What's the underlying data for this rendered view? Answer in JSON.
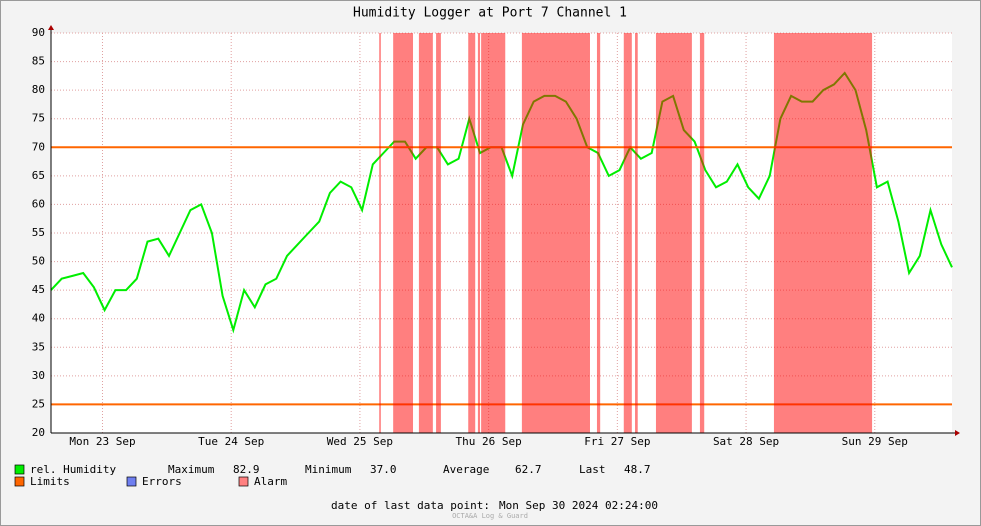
{
  "chart_data": {
    "type": "line",
    "title": "Humidity Logger at Port 7 Channel 1",
    "xlim": [
      0,
      168
    ],
    "xticks": [
      {
        "value": 9.6,
        "label": "Mon 23 Sep"
      },
      {
        "value": 33.6,
        "label": "Tue 24 Sep"
      },
      {
        "value": 57.6,
        "label": "Wed 25 Sep"
      },
      {
        "value": 81.6,
        "label": "Thu 26 Sep"
      },
      {
        "value": 105.6,
        "label": "Fri 27 Sep"
      },
      {
        "value": 129.6,
        "label": "Sat 28 Sep"
      },
      {
        "value": 153.6,
        "label": "Sun 29 Sep"
      }
    ],
    "ylim": [
      20,
      90
    ],
    "yticks": [
      20,
      25,
      30,
      35,
      40,
      45,
      50,
      55,
      60,
      65,
      70,
      75,
      80,
      85,
      90
    ],
    "grid": true,
    "series": [
      {
        "name": "rel. Humidity",
        "color": "#00ee00",
        "x": [
          0,
          2,
          4,
          6,
          8,
          10,
          12,
          14,
          16,
          18,
          20,
          22,
          24,
          26,
          28,
          30,
          32,
          34,
          36,
          38,
          40,
          42,
          44,
          46,
          48,
          50,
          52,
          54,
          56,
          58,
          60,
          62,
          64,
          66,
          68,
          70,
          72,
          74,
          76,
          78,
          80,
          82,
          84,
          86,
          88,
          90,
          92,
          94,
          96,
          98,
          100,
          102,
          104,
          106,
          108,
          110,
          112,
          114,
          116,
          118,
          120,
          122,
          124,
          126,
          128,
          130,
          132,
          134,
          136,
          138,
          140,
          142,
          144,
          146,
          148,
          150,
          152,
          154,
          156,
          158,
          160,
          162,
          164,
          166,
          168
        ],
        "values": [
          45,
          47,
          47.5,
          48,
          45.5,
          41.5,
          45,
          45,
          47,
          53.5,
          54,
          51,
          55,
          59,
          60,
          55,
          44,
          38,
          45,
          42,
          46,
          47,
          51,
          53,
          55,
          57,
          62,
          64,
          63,
          59,
          67,
          69,
          71,
          71,
          68,
          70,
          70,
          67,
          68,
          75,
          69,
          70,
          70,
          65,
          74,
          78,
          79,
          79,
          78,
          75,
          70,
          69,
          65,
          66,
          70,
          68,
          69,
          78,
          79,
          73,
          71,
          66,
          63,
          64,
          67,
          63,
          61,
          65,
          75,
          79,
          78,
          78,
          80,
          81,
          83,
          80,
          73,
          63,
          64,
          57,
          48,
          51,
          59,
          53,
          49
        ]
      }
    ],
    "limits_name": "Limits",
    "limits_color": "#ff6600",
    "limits": [
      25,
      70
    ],
    "errors_name": "Errors",
    "errors_color": "#6e7ef0",
    "alarm_name": "Alarm",
    "alarm_color": "#ff0000",
    "alarms": [
      [
        61.2,
        61.5
      ],
      [
        63.8,
        67.5
      ],
      [
        68.6,
        71.2
      ],
      [
        71.8,
        72.7
      ],
      [
        77.8,
        79.1
      ],
      [
        79.6,
        80.0
      ],
      [
        80.2,
        84.7
      ],
      [
        87.8,
        100.5
      ],
      [
        101.8,
        102.4
      ],
      [
        106.8,
        108.3
      ],
      [
        108.9,
        109.4
      ],
      [
        112.8,
        119.5
      ],
      [
        121.0,
        121.8
      ],
      [
        134.8,
        153.1
      ]
    ],
    "stats": [
      {
        "label": "Maximum",
        "value": 82.9
      },
      {
        "label": "Minimum",
        "value": 37,
        "value_label": "37.0"
      },
      {
        "label": "Average",
        "value": 62.7
      },
      {
        "label": "Last",
        "value": 48.7
      }
    ],
    "footer_label": "date of last data point:",
    "footer_date": "Mon Sep 30 2024 02:24:00",
    "watermark": "OCTA&A Log & Guard"
  }
}
